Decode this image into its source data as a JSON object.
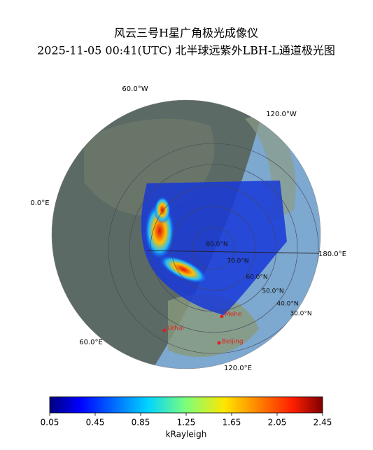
{
  "header": {
    "title": "风云三号H星广角极光成像仪",
    "subtitle": "2025-11-05 00:41(UTC) 北半球远紫外LBH-L通道极光图"
  },
  "map": {
    "longitude_labels": [
      "60.0°W",
      "120.0°W",
      "0.0°E",
      "180.0°E",
      "60.0°E",
      "120.0°E"
    ],
    "latitude_labels": [
      "80.0°N",
      "70.0°N",
      "60.0°N",
      "50.0°N",
      "40.0°N",
      "30.0°N"
    ],
    "cities": [
      "Mohe",
      "Urhai",
      "Beijing"
    ]
  },
  "colorbar": {
    "label": "kRayleigh",
    "lim": [
      0.05,
      2.45
    ],
    "ticks": [
      0.05,
      0.45,
      0.85,
      1.25,
      1.65,
      2.05,
      2.45
    ]
  }
}
